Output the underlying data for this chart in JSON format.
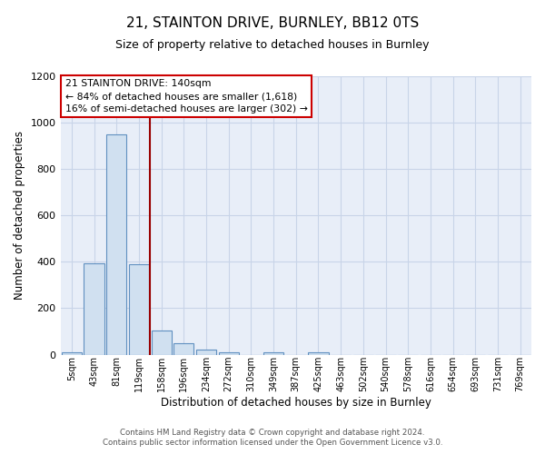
{
  "title": "21, STAINTON DRIVE, BURNLEY, BB12 0TS",
  "subtitle": "Size of property relative to detached houses in Burnley",
  "xlabel": "Distribution of detached houses by size in Burnley",
  "ylabel": "Number of detached properties",
  "footer_line1": "Contains HM Land Registry data © Crown copyright and database right 2024.",
  "footer_line2": "Contains public sector information licensed under the Open Government Licence v3.0.",
  "bin_labels": [
    "5sqm",
    "43sqm",
    "81sqm",
    "119sqm",
    "158sqm",
    "196sqm",
    "234sqm",
    "272sqm",
    "310sqm",
    "349sqm",
    "387sqm",
    "425sqm",
    "463sqm",
    "502sqm",
    "540sqm",
    "578sqm",
    "616sqm",
    "654sqm",
    "693sqm",
    "731sqm",
    "769sqm"
  ],
  "bar_values": [
    10,
    395,
    950,
    390,
    105,
    50,
    20,
    10,
    0,
    10,
    0,
    10,
    0,
    0,
    0,
    0,
    0,
    0,
    0,
    0,
    0
  ],
  "bar_color": "#d0e0f0",
  "bar_edge_color": "#6090c0",
  "property_line_x": 3.5,
  "property_line_color": "#990000",
  "annotation_title": "21 STAINTON DRIVE: 140sqm",
  "annotation_line1": "← 84% of detached houses are smaller (1,618)",
  "annotation_line2": "16% of semi-detached houses are larger (302) →",
  "annotation_box_edge_color": "#cc0000",
  "ylim": [
    0,
    1200
  ],
  "yticks": [
    0,
    200,
    400,
    600,
    800,
    1000,
    1200
  ],
  "figure_bg": "#ffffff",
  "plot_bg": "#e8eef8",
  "grid_color": "#c8d4e8",
  "title_fontsize": 11,
  "subtitle_fontsize": 9
}
